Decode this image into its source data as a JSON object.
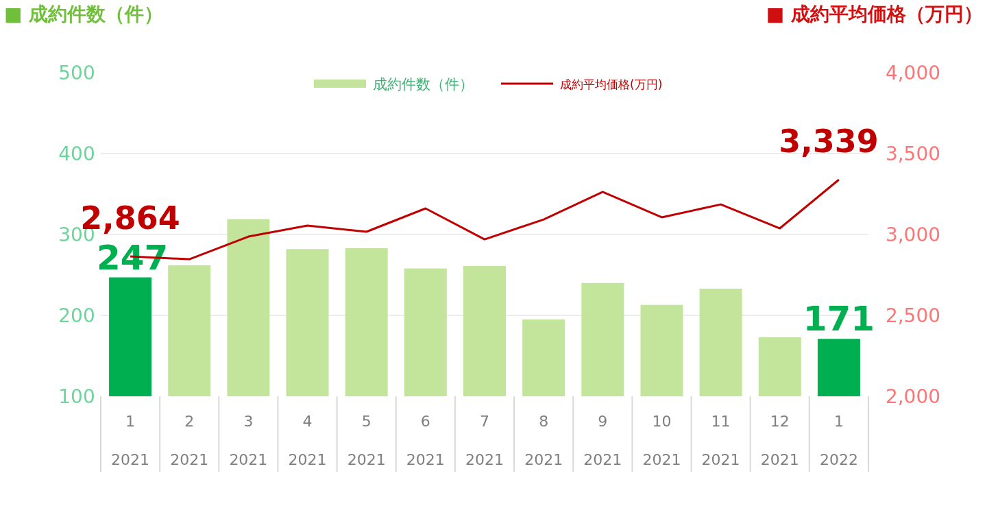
{
  "chart_data": {
    "type": "bar",
    "categories": [
      "1\n2021",
      "2\n2021",
      "3\n2021",
      "4\n2021",
      "5\n2021",
      "6\n2021",
      "7\n2021",
      "8\n2021",
      "9\n2021",
      "10\n2021",
      "11\n2021",
      "12\n2021",
      "1\n2022"
    ],
    "series": [
      {
        "name": "成約件数（件）",
        "color": "#c3e59b",
        "colors": [
          "#00b050",
          "#c3e59b",
          "#c3e59b",
          "#c3e59b",
          "#c3e59b",
          "#c3e59b",
          "#c3e59b",
          "#c3e59b",
          "#c3e59b",
          "#c3e59b",
          "#c3e59b",
          "#c3e59b",
          "#00b050"
        ],
        "values": [
          247,
          262,
          319,
          282,
          283,
          258,
          261,
          195,
          240,
          213,
          233,
          173,
          171
        ],
        "value_labels": [
          "247",
          null,
          null,
          null,
          null,
          null,
          null,
          null,
          null,
          null,
          null,
          null,
          "171"
        ]
      },
      {
        "name": "成約平均価格(万円)",
        "type": "line",
        "axis": "y2",
        "color": "#c00000",
        "values": [
          2864,
          2847,
          2987,
          3055,
          3017,
          3161,
          2970,
          3093,
          3263,
          3106,
          3186,
          3038,
          3339
        ],
        "value_labels": [
          "2,864",
          null,
          null,
          null,
          null,
          null,
          null,
          null,
          null,
          null,
          null,
          null,
          "3,339"
        ]
      }
    ],
    "ylabel": "■ 成約件数（件）",
    "y2label": "■ 成約平均価格（万円）",
    "ylim": [
      100,
      500
    ],
    "yticks": [
      100,
      200,
      300,
      400,
      500
    ],
    "y2lim": [
      2000,
      4000
    ],
    "y2ticks": [
      {
        "value": 2000,
        "label": "2,000"
      },
      {
        "value": 2500,
        "label": "2,500"
      },
      {
        "value": 3000,
        "label": "3,000"
      },
      {
        "value": 3500,
        "label": "3,500"
      },
      {
        "value": 4000,
        "label": "4,000"
      }
    ],
    "grid": "y",
    "legend": "top",
    "marker": "none",
    "line_style": "solid"
  }
}
